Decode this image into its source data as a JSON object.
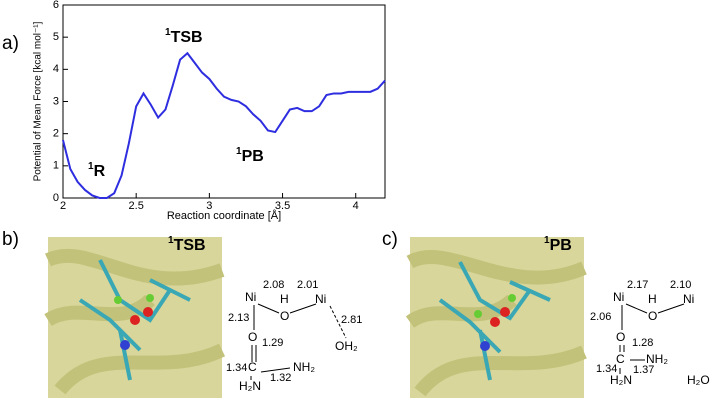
{
  "chart_data": {
    "type": "line",
    "xlabel": "Reaction coordinate [Å]",
    "ylabel": "Potential of Mean Force [kcal mol⁻¹]",
    "x": [
      2.0,
      2.05,
      2.1,
      2.15,
      2.2,
      2.25,
      2.3,
      2.35,
      2.4,
      2.45,
      2.5,
      2.55,
      2.6,
      2.65,
      2.7,
      2.75,
      2.8,
      2.85,
      2.9,
      2.95,
      3.0,
      3.05,
      3.1,
      3.15,
      3.2,
      3.25,
      3.3,
      3.35,
      3.4,
      3.45,
      3.5,
      3.55,
      3.6,
      3.65,
      3.7,
      3.75,
      3.8,
      3.85,
      3.9,
      3.95,
      4.0,
      4.05,
      4.1,
      4.15,
      4.2
    ],
    "values": [
      1.8,
      0.9,
      0.5,
      0.25,
      0.08,
      0.0,
      0.0,
      0.15,
      0.7,
      1.7,
      2.85,
      3.25,
      2.9,
      2.5,
      2.75,
      3.5,
      4.3,
      4.5,
      4.2,
      3.9,
      3.7,
      3.4,
      3.15,
      3.05,
      3.0,
      2.85,
      2.6,
      2.4,
      2.1,
      2.05,
      2.4,
      2.75,
      2.8,
      2.7,
      2.7,
      2.85,
      3.2,
      3.25,
      3.25,
      3.3,
      3.3,
      3.3,
      3.3,
      3.4,
      3.65
    ],
    "color": "#2e2ee0",
    "xlim": [
      2,
      4.2
    ],
    "xticks": [
      2,
      2.5,
      3,
      3.5,
      4
    ],
    "ylim": [
      0,
      6
    ],
    "yticks": [
      0,
      1,
      2,
      3,
      4,
      5,
      6
    ],
    "annotations": [
      {
        "sup": "1",
        "text": "R"
      },
      {
        "sup": "1",
        "text": "TSB"
      },
      {
        "sup": "1",
        "text": "PB"
      }
    ]
  },
  "panel_labels": [
    "a)",
    "b)",
    "c)"
  ],
  "structures": [
    {
      "title": {
        "sup": "1",
        "text": "TSB"
      },
      "labels": [
        "Ni",
        "H",
        "Ni",
        "O",
        "2.08",
        "2.01",
        "2.13",
        "2.81",
        "OH₂",
        "O",
        "1.29",
        "C",
        "NH₂",
        "1.34",
        "1.32",
        "H₂N"
      ]
    },
    {
      "title": {
        "sup": "1",
        "text": "PB"
      },
      "labels": [
        "Ni",
        "H",
        "Ni",
        "O",
        "2.17",
        "2.10",
        "2.06",
        "O",
        "1.28",
        "C",
        "NH₂",
        "1.34",
        "1.37",
        "H₂N",
        "H₂O"
      ]
    }
  ]
}
